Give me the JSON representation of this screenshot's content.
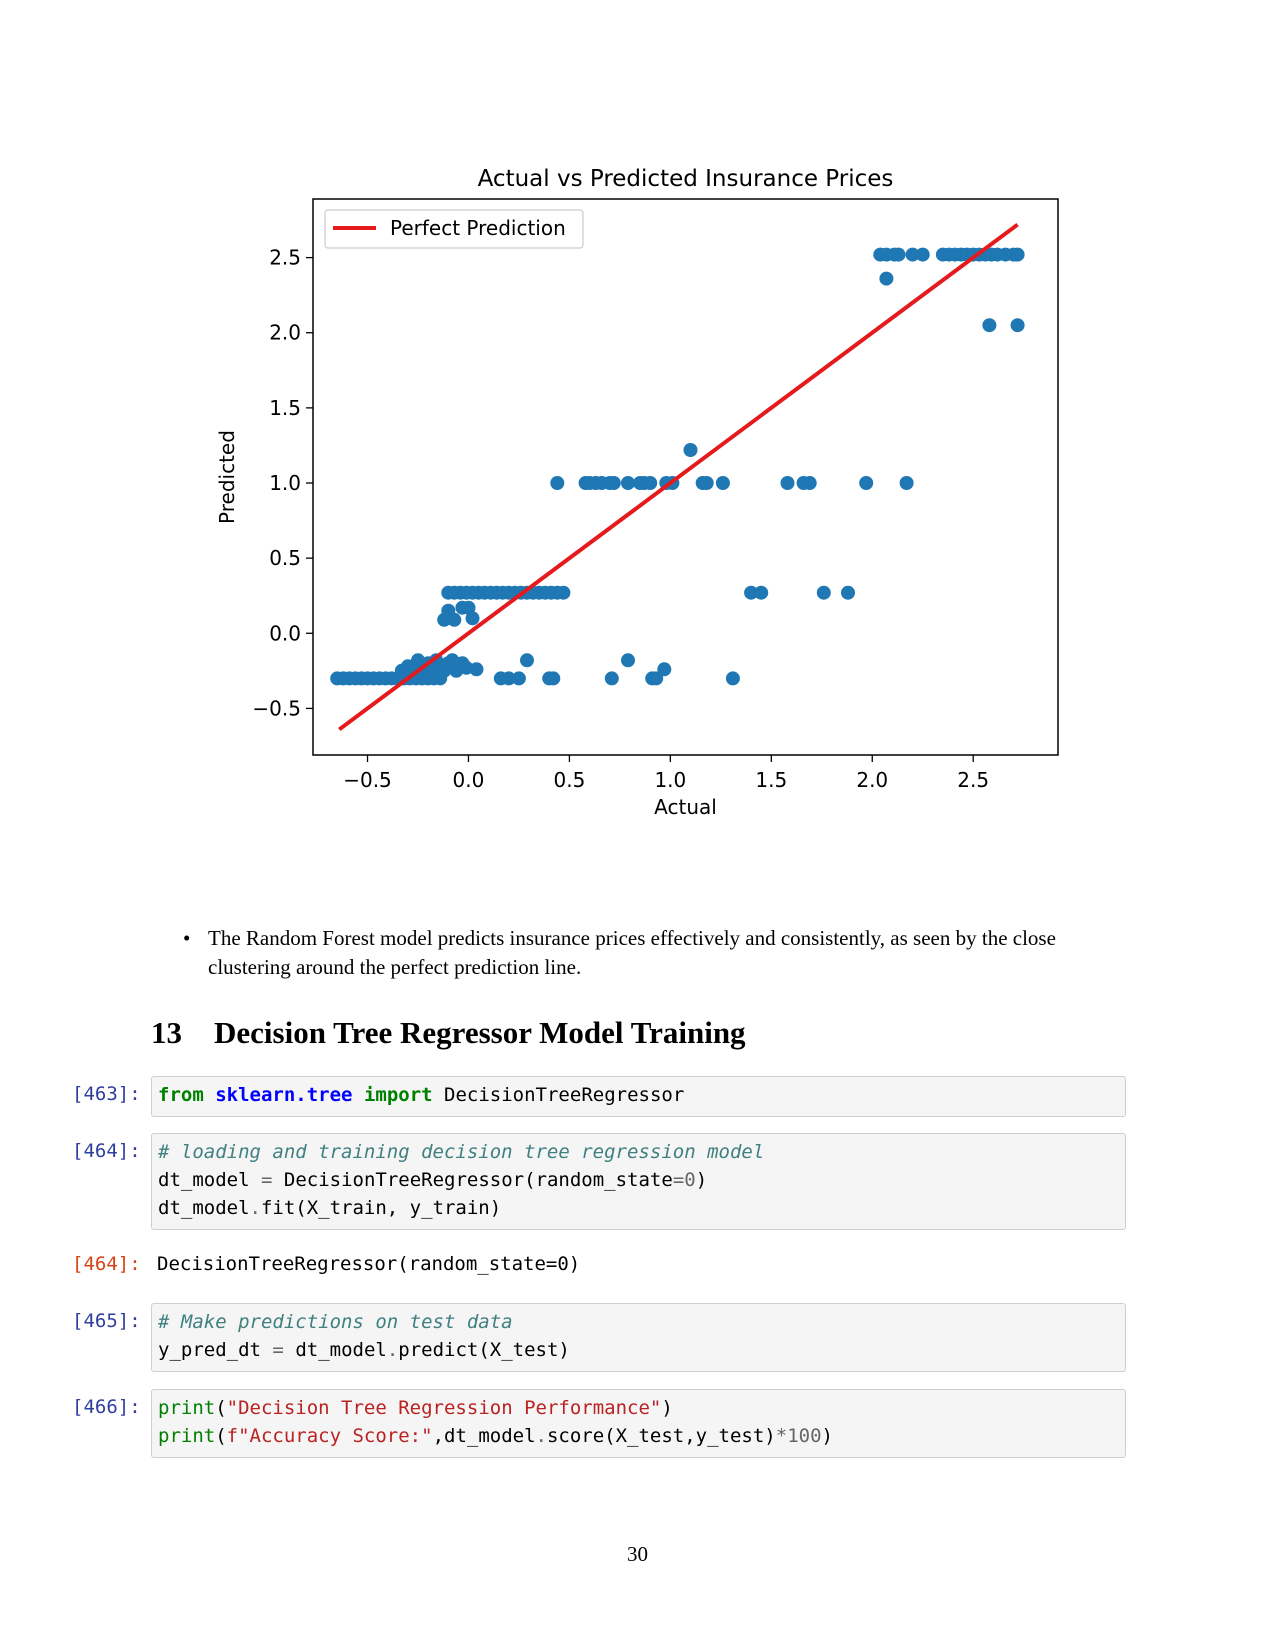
{
  "chart_data": {
    "type": "scatter",
    "title": "Actual vs Predicted Insurance Prices",
    "xlabel": "Actual",
    "ylabel": "Predicted",
    "xlim": [
      -0.77,
      2.92
    ],
    "ylim": [
      -0.81,
      2.89
    ],
    "xticks": [
      -0.5,
      0.0,
      0.5,
      1.0,
      1.5,
      2.0,
      2.5
    ],
    "xtick_labels": [
      "−0.5",
      "0.0",
      "0.5",
      "1.0",
      "1.5",
      "2.0",
      "2.5"
    ],
    "yticks": [
      -0.5,
      0.0,
      0.5,
      1.0,
      1.5,
      2.0,
      2.5
    ],
    "ytick_labels": [
      "−0.5",
      "0.0",
      "0.5",
      "1.0",
      "1.5",
      "2.0",
      "2.5"
    ],
    "grid": false,
    "legend_position": "upper left",
    "point_color": "#1f77b4",
    "line_color": "#e41a1c",
    "series": [
      {
        "kind": "scatter",
        "points": [
          [
            -0.65,
            -0.3
          ],
          [
            -0.62,
            -0.3
          ],
          [
            -0.59,
            -0.3
          ],
          [
            -0.56,
            -0.3
          ],
          [
            -0.53,
            -0.3
          ],
          [
            -0.5,
            -0.3
          ],
          [
            -0.47,
            -0.3
          ],
          [
            -0.44,
            -0.3
          ],
          [
            -0.41,
            -0.3
          ],
          [
            -0.38,
            -0.3
          ],
          [
            -0.35,
            -0.3
          ],
          [
            -0.32,
            -0.3
          ],
          [
            -0.29,
            -0.3
          ],
          [
            -0.26,
            -0.3
          ],
          [
            -0.23,
            -0.3
          ],
          [
            -0.2,
            -0.3
          ],
          [
            -0.17,
            -0.3
          ],
          [
            -0.14,
            -0.3
          ],
          [
            -0.33,
            -0.25
          ],
          [
            -0.3,
            -0.22
          ],
          [
            -0.27,
            -0.25
          ],
          [
            -0.25,
            -0.18
          ],
          [
            -0.22,
            -0.23
          ],
          [
            -0.2,
            -0.2
          ],
          [
            -0.18,
            -0.25
          ],
          [
            -0.16,
            -0.18
          ],
          [
            -0.14,
            -0.22
          ],
          [
            -0.12,
            -0.25
          ],
          [
            -0.1,
            -0.2
          ],
          [
            -0.08,
            -0.18
          ],
          [
            -0.06,
            -0.25
          ],
          [
            -0.03,
            -0.2
          ],
          [
            -0.01,
            -0.23
          ],
          [
            0.04,
            -0.24
          ],
          [
            -0.12,
            0.09
          ],
          [
            -0.1,
            0.15
          ],
          [
            -0.07,
            0.09
          ],
          [
            -0.03,
            0.17
          ],
          [
            0.0,
            0.17
          ],
          [
            0.02,
            0.1
          ],
          [
            -0.1,
            0.27
          ],
          [
            -0.07,
            0.27
          ],
          [
            -0.04,
            0.27
          ],
          [
            -0.01,
            0.27
          ],
          [
            0.02,
            0.27
          ],
          [
            0.05,
            0.27
          ],
          [
            0.08,
            0.27
          ],
          [
            0.11,
            0.27
          ],
          [
            0.14,
            0.27
          ],
          [
            0.17,
            0.27
          ],
          [
            0.2,
            0.27
          ],
          [
            0.23,
            0.27
          ],
          [
            0.26,
            0.27
          ],
          [
            0.29,
            0.27
          ],
          [
            0.32,
            0.27
          ],
          [
            0.35,
            0.27
          ],
          [
            0.38,
            0.27
          ],
          [
            0.41,
            0.27
          ],
          [
            0.44,
            0.27
          ],
          [
            0.47,
            0.27
          ],
          [
            0.16,
            -0.3
          ],
          [
            0.2,
            -0.3
          ],
          [
            0.25,
            -0.3
          ],
          [
            0.29,
            -0.18
          ],
          [
            0.4,
            -0.3
          ],
          [
            0.42,
            -0.3
          ],
          [
            0.71,
            -0.3
          ],
          [
            0.79,
            -0.18
          ],
          [
            0.91,
            -0.3
          ],
          [
            0.93,
            -0.3
          ],
          [
            0.97,
            -0.24
          ],
          [
            1.31,
            -0.3
          ],
          [
            0.44,
            1.0
          ],
          [
            0.58,
            1.0
          ],
          [
            0.6,
            1.0
          ],
          [
            0.63,
            1.0
          ],
          [
            0.66,
            1.0
          ],
          [
            0.7,
            1.0
          ],
          [
            0.72,
            1.0
          ],
          [
            0.79,
            1.0
          ],
          [
            0.85,
            1.0
          ],
          [
            0.87,
            1.0
          ],
          [
            0.9,
            1.0
          ],
          [
            0.98,
            1.0
          ],
          [
            1.01,
            1.0
          ],
          [
            1.1,
            1.22
          ],
          [
            1.16,
            1.0
          ],
          [
            1.18,
            1.0
          ],
          [
            1.26,
            1.0
          ],
          [
            1.58,
            1.0
          ],
          [
            1.66,
            1.0
          ],
          [
            1.69,
            1.0
          ],
          [
            1.97,
            1.0
          ],
          [
            2.17,
            1.0
          ],
          [
            1.4,
            0.27
          ],
          [
            1.45,
            0.27
          ],
          [
            1.76,
            0.27
          ],
          [
            1.88,
            0.27
          ],
          [
            2.04,
            2.52
          ],
          [
            2.07,
            2.52
          ],
          [
            2.11,
            2.52
          ],
          [
            2.13,
            2.52
          ],
          [
            2.2,
            2.52
          ],
          [
            2.25,
            2.52
          ],
          [
            2.35,
            2.52
          ],
          [
            2.38,
            2.52
          ],
          [
            2.41,
            2.52
          ],
          [
            2.44,
            2.52
          ],
          [
            2.47,
            2.52
          ],
          [
            2.5,
            2.52
          ],
          [
            2.53,
            2.52
          ],
          [
            2.56,
            2.52
          ],
          [
            2.59,
            2.52
          ],
          [
            2.62,
            2.52
          ],
          [
            2.66,
            2.52
          ],
          [
            2.7,
            2.52
          ],
          [
            2.72,
            2.52
          ],
          [
            2.07,
            2.36
          ],
          [
            2.58,
            2.05
          ],
          [
            2.72,
            2.05
          ]
        ]
      },
      {
        "kind": "line",
        "name": "Perfect Prediction",
        "points": [
          [
            -0.64,
            -0.64
          ],
          [
            2.72,
            2.72
          ]
        ]
      }
    ]
  },
  "bullet": {
    "text": "The Random Forest model predicts insurance prices effectively and consistently, as seen by the close clustering around the perfect prediction line."
  },
  "section": {
    "number": "13",
    "title": "Decision Tree Regressor Model Training"
  },
  "cells": {
    "c463": {
      "prompt": "[463]:",
      "kw_from": "from",
      "module": "sklearn.tree",
      "kw_import": "import",
      "name": "DecisionTreeRegressor"
    },
    "c464": {
      "prompt": "[464]:",
      "comment": "# loading and training decision tree regression model",
      "l2_a": "dt_model",
      "l2_eq": "=",
      "l2_b": "DecisionTreeRegressor(random_state",
      "l2_eq2": "=",
      "l2_num": "0",
      "l2_c": ")",
      "l3_a": "dt_model",
      "l3_dot": ".",
      "l3_b": "fit(X_train, y_train)"
    },
    "o464": {
      "prompt": "[464]:",
      "text": "DecisionTreeRegressor(random_state=0)"
    },
    "c465": {
      "prompt": "[465]:",
      "comment": "# Make predictions on test data",
      "l2_a": "y_pred_dt",
      "l2_eq": "=",
      "l2_b": "dt_model",
      "l2_dot": ".",
      "l2_c": "predict(X_test)"
    },
    "c466": {
      "prompt": "[466]:",
      "l1_fn": "print",
      "l1_open": "(",
      "l1_str": "\"Decision Tree Regression Performance\"",
      "l1_close": ")",
      "l2_fn": "print",
      "l2_open": "(",
      "l2_str": "f\"Accuracy Score:\"",
      "l2_a": ",dt_model",
      "l2_dot": ".",
      "l2_b": "score(X_test,y_test)",
      "l2_op": "*",
      "l2_num": "100",
      "l2_close": ")"
    }
  },
  "page_number": "30"
}
